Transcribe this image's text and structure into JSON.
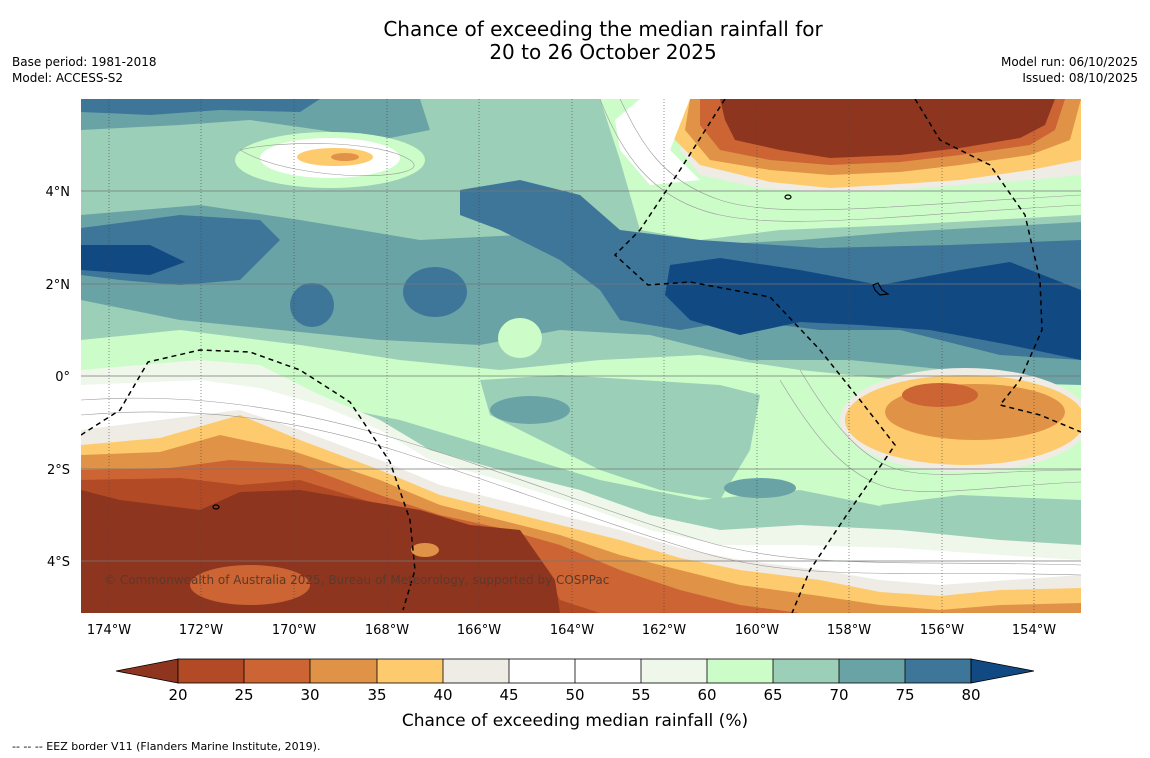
{
  "title": {
    "line1": "Chance of exceeding the median rainfall for",
    "line2": "20 to 26 October 2025"
  },
  "meta_left": {
    "base_period": "Base period: 1981-2018",
    "model": "Model: ACCESS-S2"
  },
  "meta_right": {
    "model_run": "Model run: 06/10/2025",
    "issued": "Issued: 08/10/2025"
  },
  "map": {
    "latitude_labels": [
      "4°N",
      "2°N",
      "0°",
      "2°S",
      "4°S"
    ],
    "longitude_labels": [
      "174°W",
      "172°W",
      "170°W",
      "168°W",
      "166°W",
      "164°W",
      "162°W",
      "160°W",
      "158°W",
      "156°W",
      "154°W"
    ],
    "copyright": "© Commonwealth of Australia 2025, Bureau of Meteorology, supported by COSPPac"
  },
  "colorbar": {
    "title": "Chance of exceeding median rainfall (%)",
    "tick_labels": [
      "20",
      "25",
      "30",
      "35",
      "40",
      "45",
      "50",
      "55",
      "60",
      "65",
      "70",
      "75",
      "80"
    ],
    "colors": {
      "below20": "#8e3520",
      "c20_25": "#b24a25",
      "c25_30": "#cc6433",
      "c30_35": "#e09347",
      "c35_40": "#fdcb6e",
      "c40_45": "#efebe5",
      "c45_50": "#ffffff",
      "c50_55": "#ffffff",
      "c55_60": "#eef7ea",
      "c60_65": "#ccfdc9",
      "c65_70": "#9ccfb7",
      "c70_75": "#6aa3a5",
      "c75_80": "#3e7699",
      "above80": "#114a83"
    }
  },
  "footer": {
    "eez_legend": "--  --  -- EEZ border V11 (Flanders Marine Institute, 2019)."
  }
}
